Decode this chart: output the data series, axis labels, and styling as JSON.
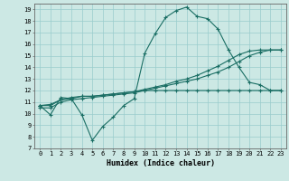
{
  "xlabel": "Humidex (Indice chaleur)",
  "bg_color": "#cce8e4",
  "line_color": "#1a6e64",
  "grid_color": "#99cccc",
  "x_values": [
    0,
    1,
    2,
    3,
    4,
    5,
    6,
    7,
    8,
    9,
    10,
    11,
    12,
    13,
    14,
    15,
    16,
    17,
    18,
    19,
    20,
    21,
    22,
    23
  ],
  "series": {
    "line1": [
      10.7,
      9.9,
      11.4,
      11.3,
      9.9,
      7.7,
      8.9,
      9.7,
      10.7,
      11.3,
      15.2,
      16.9,
      18.3,
      18.9,
      19.2,
      18.4,
      18.2,
      17.3,
      15.5,
      14.0,
      12.7,
      12.5,
      12.0,
      12.0
    ],
    "line2": [
      10.5,
      10.5,
      11.0,
      11.2,
      11.3,
      11.4,
      11.5,
      11.6,
      11.7,
      11.8,
      12.0,
      12.2,
      12.4,
      12.6,
      12.8,
      13.0,
      13.3,
      13.6,
      14.0,
      14.5,
      15.0,
      15.3,
      15.5,
      15.5
    ],
    "line3": [
      10.7,
      10.7,
      11.2,
      11.4,
      11.5,
      11.5,
      11.6,
      11.7,
      11.8,
      11.9,
      12.1,
      12.3,
      12.5,
      12.8,
      13.0,
      13.3,
      13.7,
      14.1,
      14.6,
      15.1,
      15.4,
      15.5,
      15.5,
      15.5
    ],
    "line4": [
      10.7,
      10.8,
      11.2,
      11.3,
      11.5,
      11.5,
      11.6,
      11.7,
      11.8,
      11.9,
      12.0,
      12.0,
      12.0,
      12.0,
      12.0,
      12.0,
      12.0,
      12.0,
      12.0,
      12.0,
      12.0,
      12.0,
      12.0,
      12.0
    ]
  },
  "ylim": [
    7,
    19.5
  ],
  "xlim": [
    -0.5,
    23.5
  ],
  "yticks": [
    7,
    8,
    9,
    10,
    11,
    12,
    13,
    14,
    15,
    16,
    17,
    18,
    19
  ],
  "xticks": [
    0,
    1,
    2,
    3,
    4,
    5,
    6,
    7,
    8,
    9,
    10,
    11,
    12,
    13,
    14,
    15,
    16,
    17,
    18,
    19,
    20,
    21,
    22,
    23
  ],
  "xlabel_fontsize": 6,
  "tick_fontsize": 5,
  "linewidth": 0.8,
  "markersize": 2.5
}
